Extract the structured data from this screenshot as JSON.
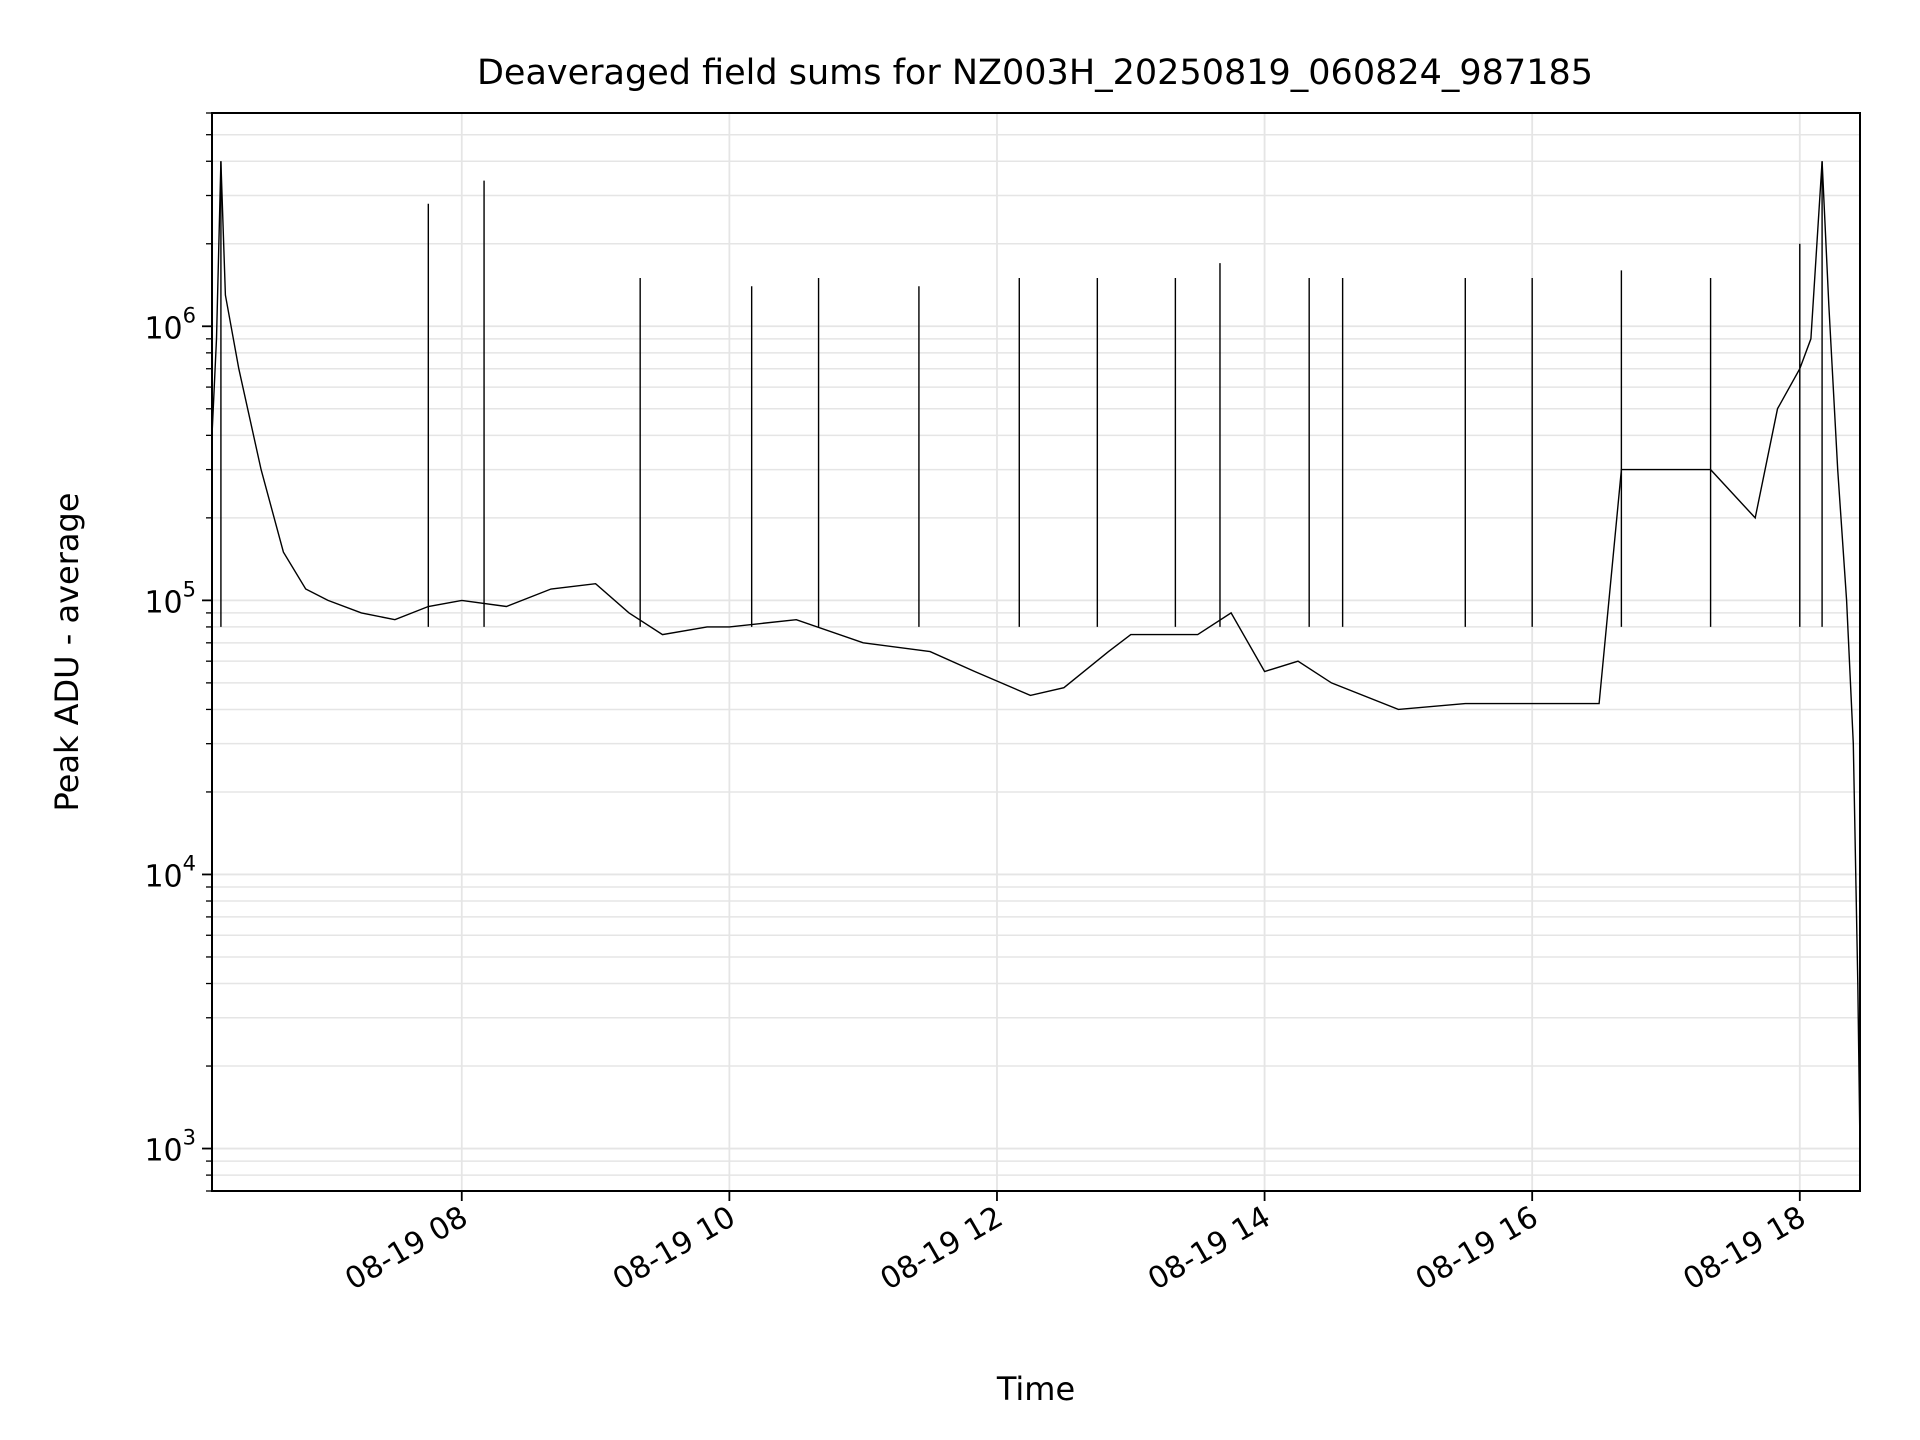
{
  "chart_data": {
    "type": "line",
    "title": "Deaveraged field sums for NZ003H_20250819_060824_987185",
    "xlabel": "Time",
    "ylabel": "Peak ADU - average",
    "y_scale": "log",
    "ylim": [
      700,
      6000000
    ],
    "xlim": [
      "2025-08-19T06:08",
      "2025-08-19T18:27"
    ],
    "x_ticks": [
      {
        "t": "2025-08-19T08:00",
        "label": "08-19 08"
      },
      {
        "t": "2025-08-19T10:00",
        "label": "08-19 10"
      },
      {
        "t": "2025-08-19T12:00",
        "label": "08-19 12"
      },
      {
        "t": "2025-08-19T14:00",
        "label": "08-19 14"
      },
      {
        "t": "2025-08-19T16:00",
        "label": "08-19 16"
      },
      {
        "t": "2025-08-19T18:00",
        "label": "08-19 18"
      }
    ],
    "y_ticks": [
      {
        "value": 1000,
        "base": "10",
        "exp": "3"
      },
      {
        "value": 10000,
        "base": "10",
        "exp": "4"
      },
      {
        "value": 100000,
        "base": "10",
        "exp": "5"
      },
      {
        "value": 1000000,
        "base": "10",
        "exp": "6"
      }
    ],
    "grid": true,
    "line_color": "#000000",
    "grid_color": "#e5e5e5",
    "series": [
      {
        "points": [
          [
            "2025-08-19T06:08",
            400000
          ],
          [
            "2025-08-19T06:10",
            900000
          ],
          [
            "2025-08-19T06:12",
            4000000
          ],
          [
            "2025-08-19T06:14",
            1300000
          ],
          [
            "2025-08-19T06:20",
            700000
          ],
          [
            "2025-08-19T06:30",
            300000
          ],
          [
            "2025-08-19T06:40",
            150000
          ],
          [
            "2025-08-19T06:50",
            110000
          ],
          [
            "2025-08-19T07:00",
            100000
          ],
          [
            "2025-08-19T07:15",
            90000
          ],
          [
            "2025-08-19T07:30",
            85000
          ],
          [
            "2025-08-19T07:45",
            95000
          ],
          [
            "2025-08-19T08:00",
            100000
          ],
          [
            "2025-08-19T08:20",
            95000
          ],
          [
            "2025-08-19T08:40",
            110000
          ],
          [
            "2025-08-19T09:00",
            115000
          ],
          [
            "2025-08-19T09:15",
            90000
          ],
          [
            "2025-08-19T09:30",
            75000
          ],
          [
            "2025-08-19T09:50",
            80000
          ],
          [
            "2025-08-19T10:00",
            80000
          ],
          [
            "2025-08-19T10:30",
            85000
          ],
          [
            "2025-08-19T11:00",
            70000
          ],
          [
            "2025-08-19T11:30",
            65000
          ],
          [
            "2025-08-19T11:50",
            55000
          ],
          [
            "2025-08-19T12:15",
            45000
          ],
          [
            "2025-08-19T12:30",
            48000
          ],
          [
            "2025-08-19T12:50",
            65000
          ],
          [
            "2025-08-19T13:00",
            75000
          ],
          [
            "2025-08-19T13:30",
            75000
          ],
          [
            "2025-08-19T13:45",
            90000
          ],
          [
            "2025-08-19T14:00",
            55000
          ],
          [
            "2025-08-19T14:15",
            60000
          ],
          [
            "2025-08-19T14:30",
            50000
          ],
          [
            "2025-08-19T15:00",
            40000
          ],
          [
            "2025-08-19T15:30",
            42000
          ],
          [
            "2025-08-19T16:00",
            42000
          ],
          [
            "2025-08-19T16:30",
            42000
          ],
          [
            "2025-08-19T16:40",
            300000
          ],
          [
            "2025-08-19T17:00",
            300000
          ],
          [
            "2025-08-19T17:20",
            300000
          ],
          [
            "2025-08-19T17:40",
            200000
          ],
          [
            "2025-08-19T17:50",
            500000
          ],
          [
            "2025-08-19T18:00",
            700000
          ],
          [
            "2025-08-19T18:05",
            900000
          ],
          [
            "2025-08-19T18:10",
            4000000
          ],
          [
            "2025-08-19T18:13",
            1200000
          ],
          [
            "2025-08-19T18:17",
            300000
          ],
          [
            "2025-08-19T18:21",
            100000
          ],
          [
            "2025-08-19T18:24",
            30000
          ],
          [
            "2025-08-19T18:26",
            4000
          ],
          [
            "2025-08-19T18:27",
            1000
          ]
        ],
        "spikes": [
          [
            "2025-08-19T06:12",
            4000000
          ],
          [
            "2025-08-19T07:45",
            2800000
          ],
          [
            "2025-08-19T08:10",
            3400000
          ],
          [
            "2025-08-19T09:20",
            1500000
          ],
          [
            "2025-08-19T10:10",
            1400000
          ],
          [
            "2025-08-19T10:40",
            1500000
          ],
          [
            "2025-08-19T11:25",
            1400000
          ],
          [
            "2025-08-19T12:10",
            1500000
          ],
          [
            "2025-08-19T12:45",
            1500000
          ],
          [
            "2025-08-19T13:20",
            1500000
          ],
          [
            "2025-08-19T13:40",
            1700000
          ],
          [
            "2025-08-19T14:20",
            1500000
          ],
          [
            "2025-08-19T14:35",
            1500000
          ],
          [
            "2025-08-19T15:30",
            1500000
          ],
          [
            "2025-08-19T16:00",
            1500000
          ],
          [
            "2025-08-19T16:40",
            1600000
          ],
          [
            "2025-08-19T17:20",
            1500000
          ],
          [
            "2025-08-19T18:00",
            2000000
          ],
          [
            "2025-08-19T18:10",
            4000000
          ]
        ]
      }
    ]
  }
}
